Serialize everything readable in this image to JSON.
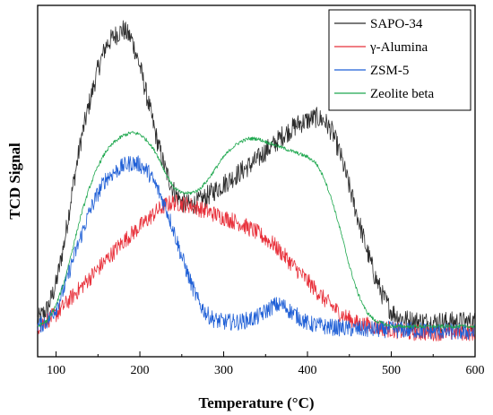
{
  "chart_data": {
    "type": "line",
    "title": "",
    "xlabel": "Temperature (°C)",
    "ylabel": "TCD Signal",
    "xlim": [
      78,
      600
    ],
    "ylim": [
      -0.08,
      1.08
    ],
    "x_ticks": [
      "100",
      "200",
      "300",
      "400",
      "500",
      "600"
    ],
    "y_ticks_visible": false,
    "grid": false,
    "legend": "top-right",
    "series": [
      {
        "name": "SAPO-34",
        "color": "#2b2b2b",
        "noise": 0.035,
        "points": [
          [
            78,
            0.04
          ],
          [
            90,
            0.08
          ],
          [
            100,
            0.16
          ],
          [
            110,
            0.3
          ],
          [
            120,
            0.48
          ],
          [
            130,
            0.64
          ],
          [
            140,
            0.76
          ],
          [
            150,
            0.87
          ],
          [
            160,
            0.95
          ],
          [
            170,
            0.98
          ],
          [
            180,
            1.0
          ],
          [
            190,
            0.97
          ],
          [
            200,
            0.88
          ],
          [
            210,
            0.76
          ],
          [
            220,
            0.64
          ],
          [
            230,
            0.54
          ],
          [
            240,
            0.47
          ],
          [
            250,
            0.43
          ],
          [
            260,
            0.42
          ],
          [
            270,
            0.43
          ],
          [
            280,
            0.45
          ],
          [
            290,
            0.47
          ],
          [
            300,
            0.49
          ],
          [
            310,
            0.51
          ],
          [
            320,
            0.53
          ],
          [
            330,
            0.55
          ],
          [
            340,
            0.57
          ],
          [
            350,
            0.6
          ],
          [
            360,
            0.62
          ],
          [
            370,
            0.65
          ],
          [
            380,
            0.67
          ],
          [
            390,
            0.69
          ],
          [
            400,
            0.7
          ],
          [
            410,
            0.71
          ],
          [
            420,
            0.7
          ],
          [
            430,
            0.66
          ],
          [
            440,
            0.58
          ],
          [
            450,
            0.48
          ],
          [
            460,
            0.38
          ],
          [
            470,
            0.28
          ],
          [
            480,
            0.19
          ],
          [
            490,
            0.12
          ],
          [
            500,
            0.07
          ],
          [
            510,
            0.05
          ],
          [
            520,
            0.04
          ],
          [
            540,
            0.035
          ],
          [
            560,
            0.035
          ],
          [
            580,
            0.035
          ],
          [
            600,
            0.035
          ]
        ]
      },
      {
        "name": "γ-Alumina",
        "color": "#e8303a",
        "noise": 0.028,
        "points": [
          [
            78,
            0.02
          ],
          [
            100,
            0.06
          ],
          [
            120,
            0.12
          ],
          [
            140,
            0.18
          ],
          [
            160,
            0.24
          ],
          [
            180,
            0.3
          ],
          [
            200,
            0.35
          ],
          [
            220,
            0.4
          ],
          [
            230,
            0.42
          ],
          [
            240,
            0.43
          ],
          [
            260,
            0.42
          ],
          [
            280,
            0.4
          ],
          [
            300,
            0.38
          ],
          [
            320,
            0.36
          ],
          [
            340,
            0.33
          ],
          [
            360,
            0.29
          ],
          [
            380,
            0.23
          ],
          [
            400,
            0.17
          ],
          [
            420,
            0.11
          ],
          [
            440,
            0.06
          ],
          [
            460,
            0.03
          ],
          [
            480,
            0.02
          ],
          [
            500,
            0.01
          ],
          [
            520,
            0.0
          ],
          [
            540,
            0.0
          ],
          [
            560,
            0.0
          ],
          [
            580,
            0.0
          ],
          [
            600,
            0.0
          ]
        ]
      },
      {
        "name": "ZSM-5",
        "color": "#1f5fd6",
        "noise": 0.028,
        "points": [
          [
            78,
            0.02
          ],
          [
            90,
            0.04
          ],
          [
            100,
            0.08
          ],
          [
            110,
            0.15
          ],
          [
            120,
            0.24
          ],
          [
            130,
            0.32
          ],
          [
            140,
            0.4
          ],
          [
            150,
            0.46
          ],
          [
            160,
            0.51
          ],
          [
            170,
            0.53
          ],
          [
            180,
            0.55
          ],
          [
            190,
            0.56
          ],
          [
            200,
            0.555
          ],
          [
            210,
            0.53
          ],
          [
            220,
            0.48
          ],
          [
            230,
            0.42
          ],
          [
            240,
            0.34
          ],
          [
            250,
            0.25
          ],
          [
            260,
            0.17
          ],
          [
            270,
            0.1
          ],
          [
            280,
            0.06
          ],
          [
            290,
            0.04
          ],
          [
            300,
            0.035
          ],
          [
            320,
            0.035
          ],
          [
            340,
            0.05
          ],
          [
            350,
            0.07
          ],
          [
            360,
            0.09
          ],
          [
            370,
            0.09
          ],
          [
            380,
            0.07
          ],
          [
            390,
            0.05
          ],
          [
            400,
            0.03
          ],
          [
            420,
            0.02
          ],
          [
            440,
            0.015
          ],
          [
            460,
            0.01
          ],
          [
            500,
            0.01
          ],
          [
            550,
            0.005
          ],
          [
            600,
            0.0
          ]
        ]
      },
      {
        "name": "Zeolite beta",
        "color": "#1fa84f",
        "noise": 0.006,
        "points": [
          [
            78,
            0.02
          ],
          [
            90,
            0.04
          ],
          [
            100,
            0.09
          ],
          [
            110,
            0.17
          ],
          [
            120,
            0.28
          ],
          [
            130,
            0.39
          ],
          [
            140,
            0.48
          ],
          [
            150,
            0.55
          ],
          [
            160,
            0.6
          ],
          [
            170,
            0.63
          ],
          [
            180,
            0.65
          ],
          [
            190,
            0.66
          ],
          [
            200,
            0.655
          ],
          [
            210,
            0.63
          ],
          [
            220,
            0.59
          ],
          [
            230,
            0.53
          ],
          [
            240,
            0.48
          ],
          [
            250,
            0.46
          ],
          [
            260,
            0.46
          ],
          [
            270,
            0.47
          ],
          [
            280,
            0.5
          ],
          [
            290,
            0.54
          ],
          [
            300,
            0.58
          ],
          [
            310,
            0.61
          ],
          [
            320,
            0.63
          ],
          [
            330,
            0.64
          ],
          [
            340,
            0.64
          ],
          [
            350,
            0.63
          ],
          [
            360,
            0.62
          ],
          [
            370,
            0.61
          ],
          [
            380,
            0.6
          ],
          [
            390,
            0.59
          ],
          [
            400,
            0.58
          ],
          [
            410,
            0.56
          ],
          [
            420,
            0.51
          ],
          [
            430,
            0.43
          ],
          [
            440,
            0.33
          ],
          [
            450,
            0.22
          ],
          [
            460,
            0.13
          ],
          [
            470,
            0.07
          ],
          [
            480,
            0.04
          ],
          [
            490,
            0.03
          ],
          [
            500,
            0.02
          ],
          [
            550,
            0.02
          ],
          [
            600,
            0.02
          ]
        ]
      }
    ]
  }
}
